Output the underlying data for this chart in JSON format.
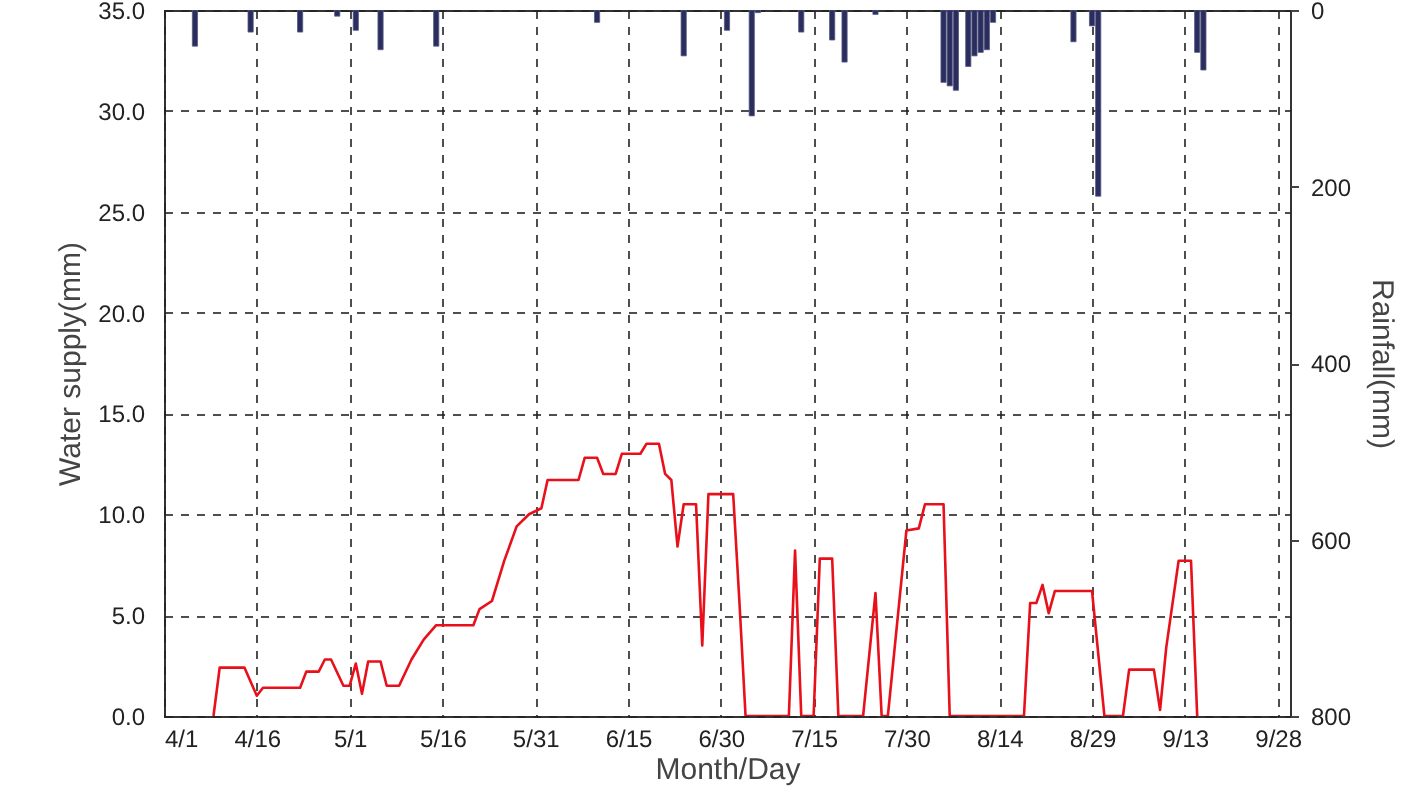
{
  "chart_data": {
    "type": "line",
    "xlabel": "Month/Day",
    "ylabel": "Water supply(mm)",
    "y2label": "Rainfall(mm)",
    "xlim": [
      "--04-01",
      "--09-30"
    ],
    "xticks": [
      {
        "value": "--04-01",
        "label": "4/1"
      },
      {
        "value": "--04-16",
        "label": "4/16"
      },
      {
        "value": "--05-01",
        "label": "5/1"
      },
      {
        "value": "--05-16",
        "label": "5/16"
      },
      {
        "value": "--05-31",
        "label": "5/31"
      },
      {
        "value": "--06-15",
        "label": "6/15"
      },
      {
        "value": "--06-30",
        "label": "6/30"
      },
      {
        "value": "--07-15",
        "label": "7/15"
      },
      {
        "value": "--07-30",
        "label": "7/30"
      },
      {
        "value": "--08-14",
        "label": "8/14"
      },
      {
        "value": "--08-29",
        "label": "8/29"
      },
      {
        "value": "--09-13",
        "label": "9/13"
      },
      {
        "value": "--09-28",
        "label": "9/28"
      }
    ],
    "ylim": [
      0,
      35
    ],
    "yticks": [
      {
        "value": 0,
        "label": "0.0"
      },
      {
        "value": 5,
        "label": "5.0"
      },
      {
        "value": 10,
        "label": "10.0"
      },
      {
        "value": 15,
        "label": "15.0"
      },
      {
        "value": 20,
        "label": "20.0"
      },
      {
        "value": 25,
        "label": "25.0"
      },
      {
        "value": 30,
        "label": "30.0"
      },
      {
        "value": 35,
        "label": "35.0"
      }
    ],
    "y2lim": [
      800,
      0
    ],
    "y2ticks": [
      0,
      200,
      400,
      600,
      800
    ],
    "grid": true,
    "series": [
      {
        "type": "bar",
        "axis": "y2",
        "color": "#2b2d5c",
        "x": [
          "--04-06",
          "--04-15",
          "--04-23",
          "--04-29",
          "--05-02",
          "--05-06",
          "--05-15",
          "--06-10",
          "--06-24",
          "--07-01",
          "--07-05",
          "--07-06",
          "--07-13",
          "--07-18",
          "--07-20",
          "--07-25",
          "--08-05",
          "--08-06",
          "--08-07",
          "--08-09",
          "--08-10",
          "--08-11",
          "--08-12",
          "--08-13",
          "--08-26",
          "--08-29",
          "--08-30",
          "--09-15",
          "--09-16"
        ],
        "values": [
          41,
          25,
          25,
          7,
          23,
          45,
          41,
          14,
          52,
          23,
          120,
          3,
          25,
          34,
          59,
          5,
          82,
          86,
          91,
          64,
          52,
          48,
          45,
          14,
          36,
          18,
          211,
          48,
          68
        ]
      },
      {
        "color": "#e8101a",
        "x": [
          "--04-09",
          "--04-10",
          "--04-14",
          "--04-16",
          "--04-17",
          "--04-23",
          "--04-24",
          "--04-26",
          "--04-27",
          "--04-28",
          "--04-30",
          "--05-01",
          "--05-02",
          "--05-03",
          "--05-04",
          "--05-06",
          "--05-07",
          "--05-09",
          "--05-11",
          "--05-13",
          "--05-15",
          "--05-21",
          "--05-22",
          "--05-24",
          "--05-26",
          "--05-28",
          "--05-30",
          "--06-01",
          "--06-02",
          "--06-07",
          "--06-08",
          "--06-10",
          "--06-11",
          "--06-13",
          "--06-14",
          "--06-17",
          "--06-18",
          "--06-20",
          "--06-21",
          "--06-22",
          "--06-23",
          "--06-24",
          "--06-26",
          "--06-27",
          "--06-28",
          "--07-02",
          "--07-03",
          "--07-04",
          "--07-11",
          "--07-12",
          "--07-13",
          "--07-15",
          "--07-16",
          "--07-18",
          "--07-19",
          "--07-23",
          "--07-25",
          "--07-26",
          "--07-27",
          "--07-30",
          "--08-01",
          "--08-02",
          "--08-05",
          "--08-06",
          "--08-18",
          "--08-19",
          "--08-20",
          "--08-21",
          "--08-22",
          "--08-23",
          "--08-29",
          "--08-31",
          "--09-03",
          "--09-04",
          "--09-08",
          "--09-09",
          "--09-10",
          "--09-12",
          "--09-14",
          "--09-15"
        ],
        "values": [
          0,
          2.4,
          2.4,
          1.0,
          1.4,
          1.4,
          2.2,
          2.2,
          2.8,
          2.8,
          1.5,
          1.5,
          2.6,
          1.1,
          2.7,
          2.7,
          1.5,
          1.5,
          2.8,
          3.8,
          4.5,
          4.5,
          5.3,
          5.7,
          7.7,
          9.4,
          10.0,
          10.3,
          11.7,
          11.7,
          12.8,
          12.8,
          12.0,
          12.0,
          13.0,
          13.0,
          13.5,
          13.5,
          12.0,
          11.7,
          8.4,
          10.5,
          10.5,
          3.5,
          11.0,
          11.0,
          5.7,
          0,
          0,
          8.2,
          0,
          0,
          7.8,
          7.8,
          0,
          0,
          6.1,
          0,
          0,
          9.2,
          9.3,
          10.5,
          10.5,
          0,
          0,
          5.6,
          5.6,
          6.5,
          5.1,
          6.2,
          6.2,
          0,
          0,
          2.3,
          2.3,
          0.3,
          3.4,
          7.7,
          7.7,
          0
        ]
      }
    ]
  }
}
